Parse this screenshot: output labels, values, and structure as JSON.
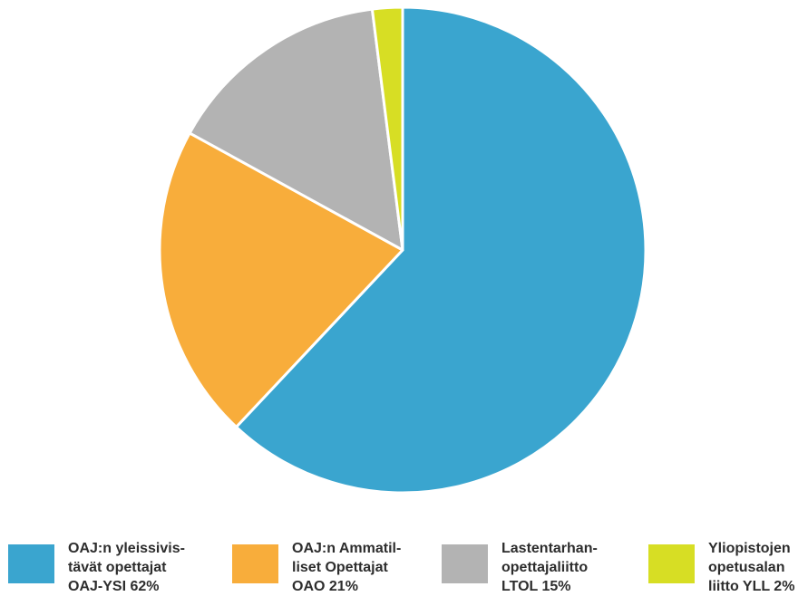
{
  "chart_data": {
    "type": "pie",
    "start_angle_deg": 0,
    "direction": "clockwise",
    "slices": [
      {
        "label": "OAJ:n yleissivis-\ntävät opettajat\nOAJ-YSI 62%",
        "value": 62,
        "color": "#3aa5cf"
      },
      {
        "label": "OAJ:n Ammatil-\nliset Opettajat\nOAO 21%",
        "value": 21,
        "color": "#f8ad3b"
      },
      {
        "label": "Lastentarhan-\nopettajaliitto\nLTOL 15%",
        "value": 15,
        "color": "#b3b3b3"
      },
      {
        "label": "Yliopistojen\nopetusalan\nliitto YLL 2%",
        "value": 2,
        "color": "#d7de24"
      }
    ],
    "title": "",
    "legend_position": "bottom"
  }
}
